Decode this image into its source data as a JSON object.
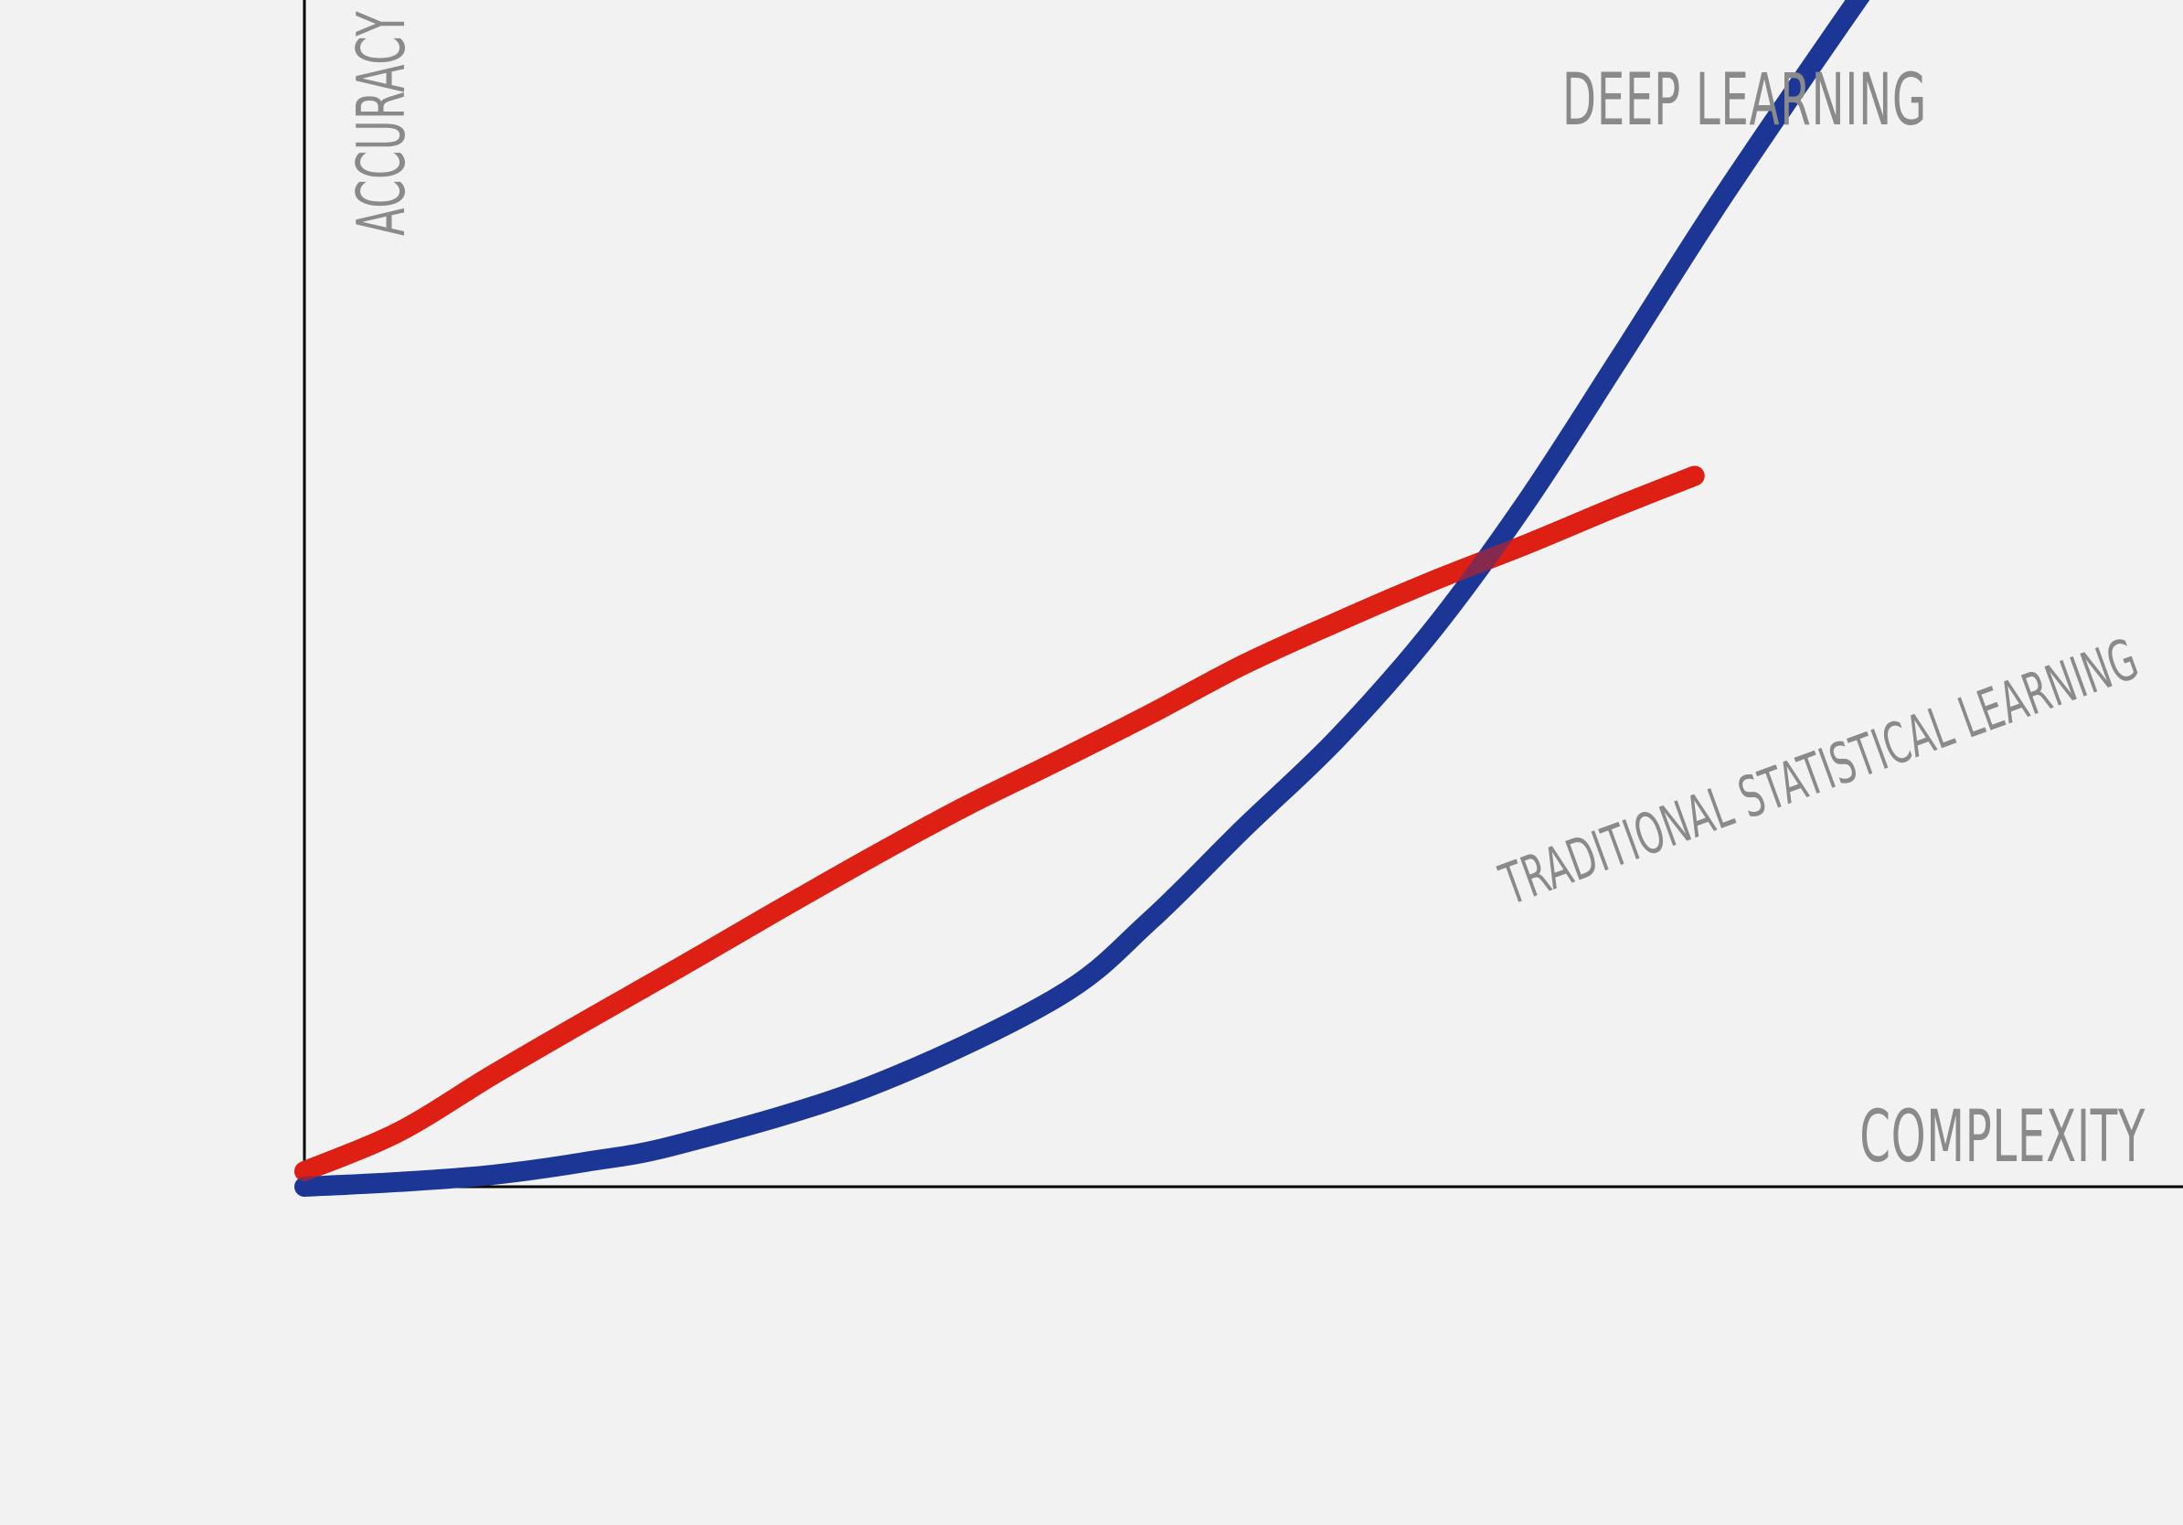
{
  "chart_data": {
    "type": "line",
    "xlabel": "COMPLEXITY",
    "ylabel": "ACCURACY",
    "grid": false,
    "xlim": [
      0,
      1
    ],
    "ylim": [
      0,
      1
    ],
    "series": [
      {
        "name": "DEEP LEARNING",
        "color": "#1c3696",
        "points": [
          [
            0.0,
            0.0
          ],
          [
            0.05,
            0.004
          ],
          [
            0.1,
            0.01
          ],
          [
            0.15,
            0.021
          ],
          [
            0.2,
            0.036
          ],
          [
            0.3,
            0.084
          ],
          [
            0.4,
            0.159
          ],
          [
            0.45,
            0.224
          ],
          [
            0.5,
            0.302
          ],
          [
            0.55,
            0.378
          ],
          [
            0.6,
            0.468
          ],
          [
            0.65,
            0.576
          ],
          [
            0.7,
            0.698
          ],
          [
            0.75,
            0.822
          ],
          [
            0.8,
            0.939
          ],
          [
            0.85,
            1.053
          ]
        ]
      },
      {
        "name": "TRADITIONAL STATISTICAL LEARNING",
        "color": "#dd1f14",
        "points": [
          [
            0.0,
            0.013
          ],
          [
            0.05,
            0.046
          ],
          [
            0.1,
            0.094
          ],
          [
            0.15,
            0.14
          ],
          [
            0.2,
            0.185
          ],
          [
            0.25,
            0.231
          ],
          [
            0.3,
            0.276
          ],
          [
            0.35,
            0.319
          ],
          [
            0.4,
            0.358
          ],
          [
            0.45,
            0.398
          ],
          [
            0.5,
            0.44
          ],
          [
            0.55,
            0.476
          ],
          [
            0.6,
            0.51
          ],
          [
            0.65,
            0.541
          ],
          [
            0.7,
            0.574
          ],
          [
            0.74,
            0.599
          ]
        ]
      }
    ]
  }
}
